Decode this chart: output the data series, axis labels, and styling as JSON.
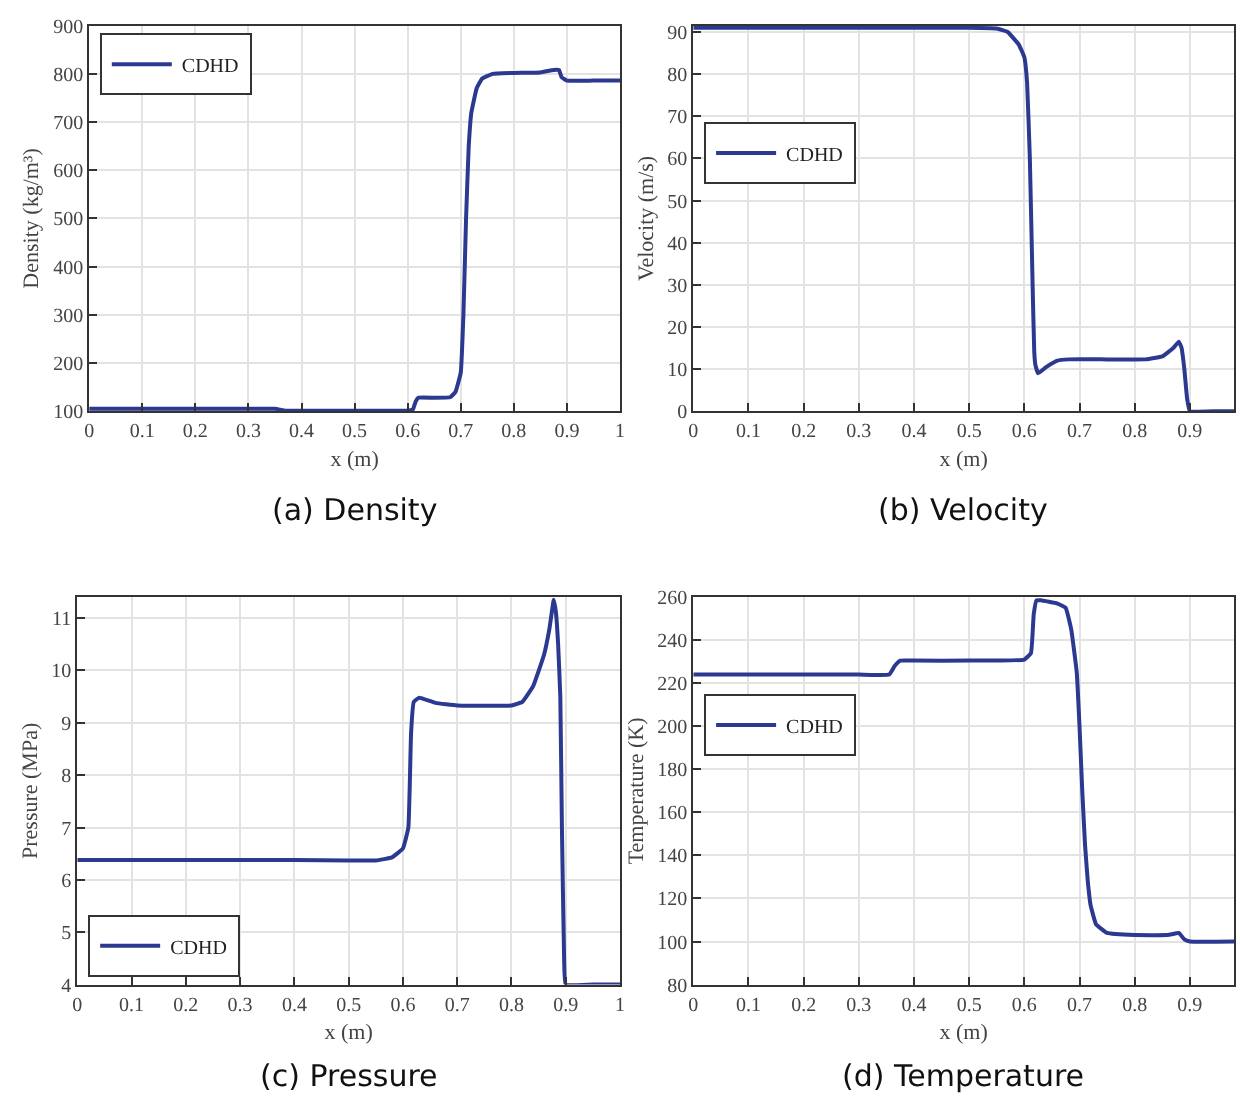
{
  "chart_data": [
    {
      "type": "line",
      "xlabel": "x (m)",
      "ylabel": "Density (kg/m³)",
      "annotations": [
        "(a) Density"
      ],
      "xlim": [
        0,
        1
      ],
      "xticks": [
        0,
        0.1,
        0.2,
        0.3,
        0.4,
        0.5,
        0.6,
        0.7,
        0.8,
        0.9,
        1
      ],
      "ylim": [
        100,
        900
      ],
      "yticks": [
        100,
        200,
        300,
        400,
        500,
        600,
        700,
        800,
        900
      ],
      "grid": true,
      "legend": "top left",
      "marker": "none",
      "line_style": "solid",
      "x": [
        0,
        0.1,
        0.2,
        0.3,
        0.35,
        0.36,
        0.37,
        0.4,
        0.5,
        0.6,
        0.61,
        0.615,
        0.62,
        0.65,
        0.68,
        0.69,
        0.7,
        0.705,
        0.71,
        0.715,
        0.72,
        0.73,
        0.74,
        0.76,
        0.8,
        0.85,
        0.875,
        0.885,
        0.89,
        0.9,
        0.95,
        1
      ],
      "series": [
        {
          "name": "CDHD",
          "color": "#2b3990",
          "values": [
            105,
            105,
            105,
            105,
            105,
            103,
            101,
            101,
            101,
            101,
            104,
            120,
            128,
            128,
            129,
            140,
            180,
            300,
            500,
            650,
            720,
            770,
            790,
            800,
            802,
            803,
            808,
            808,
            793,
            786,
            786,
            786
          ]
        }
      ]
    },
    {
      "type": "line",
      "xlabel": "x (m)",
      "ylabel": "Velocity (m/s)",
      "annotations": [
        "(b) Velocity"
      ],
      "xlim": [
        0,
        0.98
      ],
      "xticks": [
        0,
        0.1,
        0.2,
        0.3,
        0.4,
        0.5,
        0.6,
        0.7,
        0.8,
        0.9
      ],
      "ylim": [
        0,
        91.5
      ],
      "yticks": [
        0,
        10,
        20,
        30,
        40,
        50,
        60,
        70,
        80,
        90
      ],
      "grid": true,
      "legend": "left",
      "marker": "none",
      "line_style": "solid",
      "x": [
        0,
        0.1,
        0.2,
        0.3,
        0.4,
        0.5,
        0.55,
        0.57,
        0.59,
        0.6,
        0.605,
        0.61,
        0.615,
        0.618,
        0.62,
        0.625,
        0.64,
        0.66,
        0.68,
        0.75,
        0.82,
        0.85,
        0.87,
        0.88,
        0.885,
        0.89,
        0.895,
        0.9,
        0.95,
        0.98
      ],
      "series": [
        {
          "name": "CDHD",
          "color": "#2b3990",
          "values": [
            91,
            91,
            91,
            91,
            91,
            91,
            90.8,
            90,
            87,
            84,
            78,
            60,
            30,
            14,
            11,
            9,
            10.5,
            12,
            12.3,
            12.3,
            12.3,
            13,
            15,
            16.5,
            15,
            10,
            3,
            0,
            0,
            0
          ]
        }
      ]
    },
    {
      "type": "line",
      "xlabel": "x (m)",
      "ylabel": "Pressure (MPa)",
      "annotations": [
        "(c) Pressure"
      ],
      "xlim": [
        0,
        1
      ],
      "xticks": [
        0,
        0.1,
        0.2,
        0.3,
        0.4,
        0.5,
        0.6,
        0.7,
        0.8,
        0.9,
        1
      ],
      "ylim": [
        4,
        11.4
      ],
      "yticks": [
        4,
        5,
        6,
        7,
        8,
        9,
        10,
        11
      ],
      "grid": true,
      "legend": "bottom left",
      "marker": "none",
      "line_style": "solid",
      "x": [
        0,
        0.1,
        0.2,
        0.3,
        0.4,
        0.5,
        0.55,
        0.58,
        0.6,
        0.61,
        0.615,
        0.62,
        0.63,
        0.66,
        0.7,
        0.8,
        0.82,
        0.84,
        0.86,
        0.87,
        0.878,
        0.882,
        0.886,
        0.89,
        0.893,
        0.897,
        0.9,
        0.95,
        1
      ],
      "series": [
        {
          "name": "CDHD",
          "color": "#2b3990",
          "values": [
            6.38,
            6.38,
            6.38,
            6.38,
            6.38,
            6.37,
            6.37,
            6.43,
            6.6,
            7,
            8.8,
            9.4,
            9.48,
            9.38,
            9.33,
            9.33,
            9.4,
            9.7,
            10.3,
            10.8,
            11.35,
            11.1,
            10.5,
            9.5,
            7,
            4.5,
            4,
            4,
            4
          ]
        }
      ]
    },
    {
      "type": "line",
      "xlabel": "x (m)",
      "ylabel": "Temperature (K)",
      "annotations": [
        "(d) Temperature"
      ],
      "xlim": [
        0,
        0.98
      ],
      "xticks": [
        0,
        0.1,
        0.2,
        0.3,
        0.4,
        0.5,
        0.6,
        0.7,
        0.8,
        0.9
      ],
      "ylim": [
        80,
        260
      ],
      "yticks": [
        80,
        100,
        120,
        140,
        160,
        180,
        200,
        220,
        240,
        260
      ],
      "grid": true,
      "legend": "left",
      "marker": "none",
      "line_style": "solid",
      "x": [
        0,
        0.1,
        0.2,
        0.3,
        0.355,
        0.365,
        0.375,
        0.4,
        0.5,
        0.6,
        0.612,
        0.617,
        0.622,
        0.63,
        0.66,
        0.675,
        0.685,
        0.695,
        0.7,
        0.705,
        0.71,
        0.715,
        0.72,
        0.73,
        0.75,
        0.8,
        0.86,
        0.88,
        0.89,
        0.9,
        0.98
      ],
      "series": [
        {
          "name": "CDHD",
          "color": "#2b3990",
          "values": [
            224,
            224,
            224,
            224,
            224,
            228,
            230.5,
            230.5,
            230.5,
            231,
            234,
            252,
            258.5,
            258.5,
            257,
            255,
            245,
            225,
            200,
            170,
            145,
            128,
            117,
            108,
            104,
            103,
            103,
            104,
            101,
            100,
            100
          ]
        }
      ]
    }
  ]
}
